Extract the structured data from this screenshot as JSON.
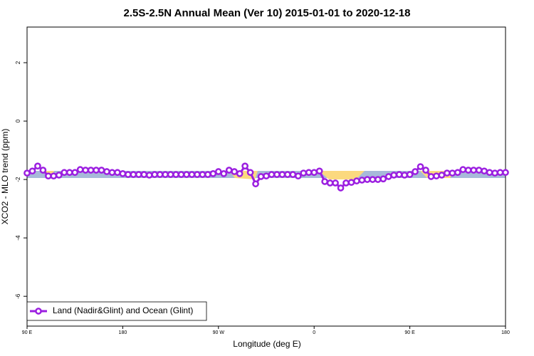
{
  "chart_data": {
    "type": "line",
    "title": "2.5S-2.5N Annual Mean (Ver 10)   2015-01-01 to 2020-12-18",
    "x_label": "Longitude (deg E)",
    "y_label": "XCO2 - MLO trend (ppm)",
    "legend": "bottom-left",
    "x": [
      90,
      95,
      100,
      105,
      110,
      115,
      120,
      125,
      130,
      135,
      140,
      145,
      150,
      155,
      160,
      165,
      170,
      175,
      180,
      185,
      190,
      195,
      200,
      205,
      210,
      215,
      220,
      225,
      230,
      235,
      240,
      245,
      250,
      255,
      260,
      265,
      270,
      275,
      280,
      285,
      290,
      295,
      300,
      305,
      310,
      315,
      320,
      325,
      330,
      335,
      340,
      345,
      350,
      355,
      360,
      365,
      370,
      375,
      380,
      385,
      390,
      395,
      400,
      405,
      410,
      415,
      420,
      425,
      430,
      435,
      440,
      445,
      450,
      455,
      460,
      465,
      470,
      475,
      480,
      485,
      490,
      495,
      500,
      505,
      510,
      515,
      520,
      525,
      530,
      535,
      540
    ],
    "series": [
      {
        "name": "Land (Nadir&Glint) and Ocean (Glint)",
        "color": "#9b1ee0",
        "values": [
          -1.78,
          -1.71,
          -1.54,
          -1.68,
          -1.88,
          -1.88,
          -1.85,
          -1.76,
          -1.76,
          -1.76,
          -1.66,
          -1.68,
          -1.68,
          -1.68,
          -1.68,
          -1.73,
          -1.76,
          -1.76,
          -1.8,
          -1.83,
          -1.83,
          -1.83,
          -1.83,
          -1.85,
          -1.83,
          -1.83,
          -1.83,
          -1.83,
          -1.83,
          -1.83,
          -1.83,
          -1.83,
          -1.83,
          -1.83,
          -1.83,
          -1.8,
          -1.73,
          -1.8,
          -1.68,
          -1.73,
          -1.8,
          -1.54,
          -1.76,
          -2.15,
          -1.9,
          -1.88,
          -1.83,
          -1.83,
          -1.83,
          -1.83,
          -1.83,
          -1.88,
          -1.78,
          -1.76,
          -1.76,
          -1.71,
          -2.07,
          -2.12,
          -2.12,
          -2.29,
          -2.12,
          -2.1,
          -2.05,
          -2.02,
          -2.0,
          -2.0,
          -2.0,
          -1.98,
          -1.9,
          -1.85,
          -1.83,
          -1.85,
          -1.83,
          -1.73,
          -1.56,
          -1.68,
          -1.9,
          -1.88,
          -1.85,
          -1.78,
          -1.78,
          -1.76,
          -1.66,
          -1.68,
          -1.68,
          -1.68,
          -1.71,
          -1.76,
          -1.78,
          -1.76,
          -1.76
        ]
      }
    ],
    "xlim": [
      90,
      540
    ],
    "xticks": [
      {
        "value": 90,
        "label": "90 E"
      },
      180,
      {
        "value": 270,
        "label": "90 W"
      },
      {
        "value": 360,
        "label": "0"
      },
      {
        "value": 450,
        "label": "90 E"
      },
      {
        "value": 540,
        "label": "180"
      }
    ],
    "ylim": [
      -7.02,
      3.22
    ],
    "yticks": [
      -6,
      -4,
      -2,
      0,
      2
    ]
  }
}
